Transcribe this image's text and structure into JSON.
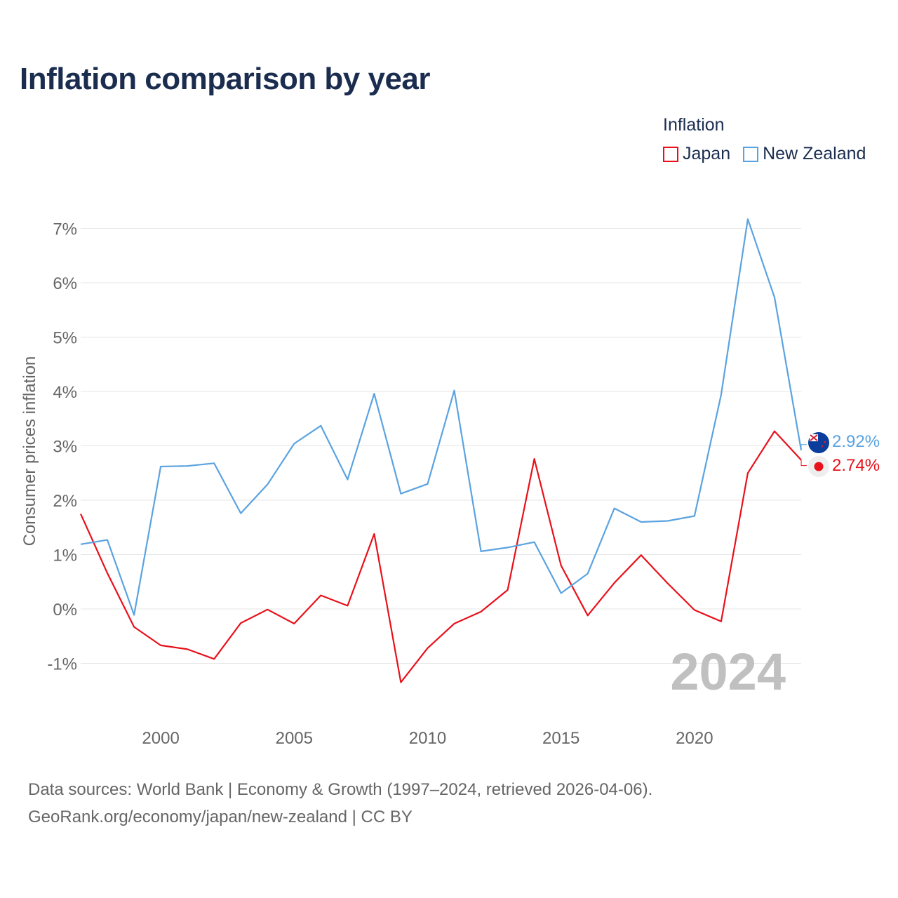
{
  "title": "Inflation comparison by year",
  "legend": {
    "title": "Inflation",
    "items": [
      {
        "label": "Japan",
        "color": "#e8111b"
      },
      {
        "label": "New Zealand",
        "color": "#5ba3e0"
      }
    ]
  },
  "source": {
    "line1": "Data sources: World Bank | Economy & Growth (1997–2024, retrieved 2026-04-06).",
    "line2": "GeoRank.org/economy/japan/new-zealand | CC BY"
  },
  "year_watermark": "2024",
  "chart_data": {
    "type": "line",
    "title": "Inflation comparison by year",
    "xlabel": "",
    "ylabel": "Consumer prices inflation",
    "xlim": [
      1997,
      2024
    ],
    "ylim": [
      -1.8,
      7.4
    ],
    "x_ticks": [
      2000,
      2005,
      2010,
      2015,
      2020
    ],
    "y_ticks": [
      {
        "value": 7,
        "label": "7%"
      },
      {
        "value": 6,
        "label": "6%"
      },
      {
        "value": 5,
        "label": "5%"
      },
      {
        "value": 4,
        "label": "4%"
      },
      {
        "value": 3,
        "label": "3%"
      },
      {
        "value": 2,
        "label": "2%"
      },
      {
        "value": 1,
        "label": "1%"
      },
      {
        "value": 0,
        "label": "0%"
      },
      {
        "value": -1,
        "label": "-1%"
      }
    ],
    "grid": true,
    "legend_position": "top-right",
    "x": [
      1997,
      1998,
      1999,
      2000,
      2001,
      2002,
      2003,
      2004,
      2005,
      2006,
      2007,
      2008,
      2009,
      2010,
      2011,
      2012,
      2013,
      2014,
      2015,
      2016,
      2017,
      2018,
      2019,
      2020,
      2021,
      2022,
      2023,
      2024
    ],
    "series": [
      {
        "name": "Japan",
        "color": "#e8111b",
        "values": [
          1.75,
          0.66,
          -0.33,
          -0.67,
          -0.74,
          -0.92,
          -0.26,
          -0.01,
          -0.27,
          0.25,
          0.06,
          1.38,
          -1.35,
          -0.72,
          -0.27,
          -0.05,
          0.35,
          2.76,
          0.8,
          -0.12,
          0.48,
          0.99,
          0.47,
          -0.02,
          -0.23,
          2.5,
          3.27,
          2.74
        ],
        "end_label": "2.74%"
      },
      {
        "name": "New Zealand",
        "color": "#5ba3e0",
        "values": [
          1.19,
          1.27,
          -0.11,
          2.62,
          2.63,
          2.68,
          1.76,
          2.29,
          3.04,
          3.37,
          2.38,
          3.96,
          2.12,
          2.3,
          4.02,
          1.06,
          1.13,
          1.23,
          0.29,
          0.65,
          1.85,
          1.6,
          1.62,
          1.71,
          3.94,
          7.17,
          5.73,
          2.92
        ],
        "end_label": "2.92%"
      }
    ]
  }
}
